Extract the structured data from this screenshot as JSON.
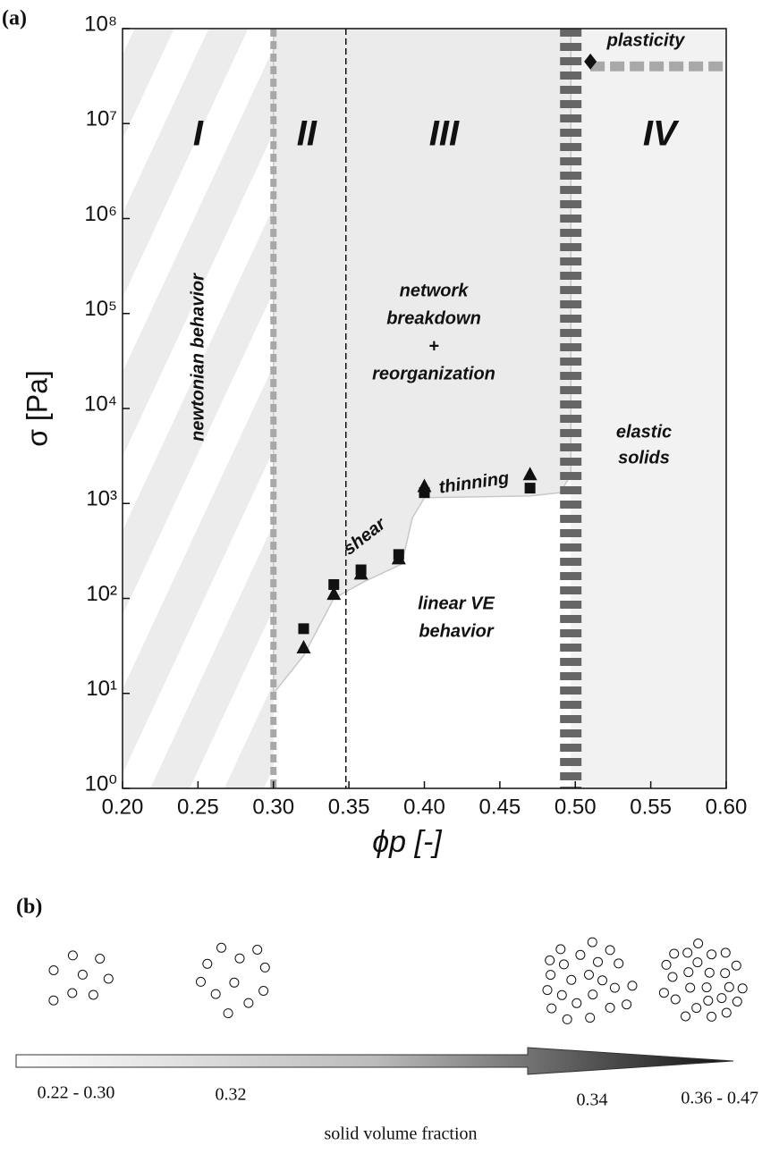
{
  "chart_data": {
    "type": "scatter",
    "panel_label": "(a)",
    "xlabel": "ϕp [-]",
    "ylabel": "σ [Pa]",
    "xlim": [
      0.2,
      0.6
    ],
    "ylim": [
      1,
      100000000
    ],
    "log_y": true,
    "xticks": [
      {
        "value": 0.2,
        "label": "0.20"
      },
      0.25,
      {
        "value": 0.3,
        "label": "0.30"
      },
      0.35,
      {
        "value": 0.4,
        "label": "0.40"
      },
      0.45,
      {
        "value": 0.5,
        "label": "0.50"
      },
      0.55,
      {
        "value": 0.6,
        "label": "0.60"
      }
    ],
    "yticks": [
      {
        "value": 1,
        "label": "10⁰"
      },
      {
        "value": 10,
        "label": "10¹"
      },
      {
        "value": 100,
        "label": "10²"
      },
      {
        "value": 1000,
        "label": "10³"
      },
      {
        "value": 10000,
        "label": "10⁴"
      },
      {
        "value": 100000,
        "label": "10⁵"
      },
      {
        "value": 1000000,
        "label": "10⁶"
      },
      {
        "value": 10000000,
        "label": "10⁷"
      },
      {
        "value": 100000000,
        "label": "10⁸"
      }
    ],
    "series": [
      {
        "marker": "square",
        "color": "#111111",
        "x": [
          0.32,
          0.34,
          0.358,
          0.383,
          0.4,
          0.47
        ],
        "values": [
          48,
          140,
          200,
          290,
          1300,
          1450
        ]
      },
      {
        "marker": "triangle",
        "color": "#111111",
        "x": [
          0.32,
          0.34,
          0.358,
          0.383,
          0.4,
          0.47
        ],
        "values": [
          30,
          110,
          180,
          260,
          1500,
          2000
        ]
      },
      {
        "marker": "diamond",
        "color": "#111111",
        "x": [
          0.51
        ],
        "values": [
          45000000
        ]
      }
    ],
    "boundaries": [
      0.3,
      0.348,
      0.497
    ],
    "plasticity_level": 40000000,
    "onset_curve": {
      "x": [
        0.3,
        0.32,
        0.34,
        0.36,
        0.385,
        0.392,
        0.4,
        0.47,
        0.49,
        0.497
      ],
      "y": [
        10,
        25,
        100,
        150,
        230,
        700,
        1150,
        1200,
        1300,
        2000
      ]
    },
    "regions": [
      "I",
      "II",
      "III",
      "IV"
    ],
    "annotations": {
      "newtonian": "newtonian behavior",
      "network": [
        "network",
        "breakdown",
        "+",
        "reorganization"
      ],
      "elastic": [
        "elastic",
        "solids"
      ],
      "linear": [
        "linear VE",
        "behavior"
      ],
      "shear": "shear",
      "thinning": "thinning",
      "plasticity": "plasticity"
    }
  },
  "panel_b": {
    "label": "(b)",
    "stages": [
      "0.22 - 0.30",
      "0.32",
      "0.34",
      "0.36 - 0.47"
    ],
    "axis_label": "solid volume fraction"
  }
}
